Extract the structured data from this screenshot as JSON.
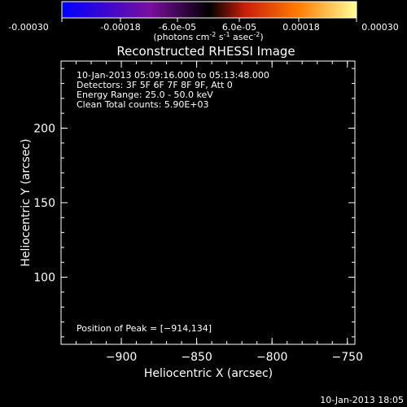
{
  "colorbar": {
    "ticks": [
      "-0.00030",
      "-0.00018",
      "-6.0e-05",
      "6.0e-05",
      "0.00018",
      "0.00030"
    ],
    "units_main": "(photons cm",
    "units_sup1": "-2",
    "units_mid": " s",
    "units_sup2": "-1",
    "units_end": " asec",
    "units_sup3": "-2",
    "units_close": ")",
    "range": [
      -0.0003,
      0.0003
    ],
    "colors": [
      "#0000ff",
      "#7a0f9e",
      "#000000",
      "#c81e0a",
      "#ff7b00",
      "#ffff9a"
    ]
  },
  "chart_data": {
    "type": "heatmap",
    "title": "Reconstructed RHESSI Image",
    "xlabel": "Heliocentric X (arcsec)",
    "ylabel": "Heliocentric Y (arcsec)",
    "xlim": [
      -940,
      -745
    ],
    "ylim": [
      55,
      245
    ],
    "x_ticks": [
      -900,
      -850,
      -800,
      -750
    ],
    "y_ticks": [
      100,
      150,
      200
    ],
    "x_tick_labels": [
      "−900",
      "−850",
      "−800",
      "−750"
    ],
    "y_tick_labels": [
      "100",
      "150",
      "200"
    ],
    "annotations": [
      "10-Jan-2013 05:09:16.000 to 05:13:48.000",
      "Detectors: 3F 5F 6F 7F 8F 9F, Att 0",
      "Energy Range: 25.0 - 50.0 keV",
      "Clean     Total counts: 5.90E+03"
    ],
    "peak_label": "Position of Peak = [−914,134]",
    "peak": [
      -914,
      134
    ],
    "grid": false
  },
  "footer": {
    "timestamp": "10-Jan-2013 18:05"
  }
}
